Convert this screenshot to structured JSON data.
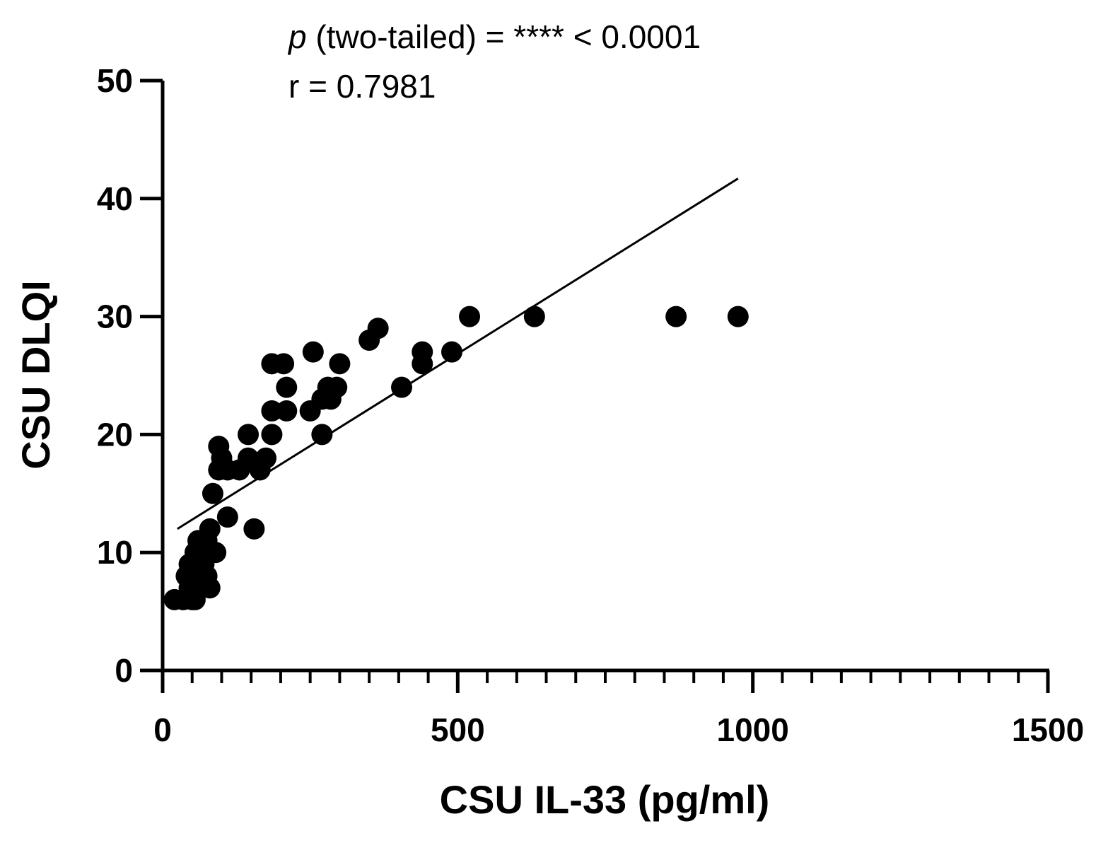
{
  "chart_data": {
    "type": "scatter",
    "title": "",
    "annotations": {
      "p_symbol": "p",
      "p_text": " (two-tailed) = **** < 0.0001",
      "r_text": "r = 0.7981"
    },
    "xlabel": "CSU IL-33 (pg/ml)",
    "ylabel": "CSU DLQI",
    "xlim": [
      0,
      1500
    ],
    "ylim": [
      0,
      50
    ],
    "x_major_ticks": [
      0,
      500,
      1000,
      1500
    ],
    "x_tick_labels": [
      "0",
      "500",
      "1000",
      "1500"
    ],
    "x_minor_step": 50,
    "y_major_ticks": [
      0,
      10,
      20,
      30,
      40,
      50
    ],
    "y_tick_labels": [
      "0",
      "10",
      "20",
      "30",
      "40",
      "50"
    ],
    "grid": false,
    "legend": null,
    "series": [
      {
        "name": "CSU",
        "marker": "circle",
        "color": "#000000",
        "points": [
          [
            20,
            6
          ],
          [
            35,
            6
          ],
          [
            50,
            6
          ],
          [
            55,
            6
          ],
          [
            45,
            7
          ],
          [
            80,
            7
          ],
          [
            40,
            8
          ],
          [
            60,
            8
          ],
          [
            75,
            8
          ],
          [
            45,
            9
          ],
          [
            65,
            9
          ],
          [
            70,
            9
          ],
          [
            55,
            10
          ],
          [
            90,
            10
          ],
          [
            60,
            11
          ],
          [
            75,
            11
          ],
          [
            80,
            12
          ],
          [
            155,
            12
          ],
          [
            110,
            13
          ],
          [
            85,
            15
          ],
          [
            95,
            17
          ],
          [
            110,
            17
          ],
          [
            130,
            17
          ],
          [
            165,
            17
          ],
          [
            100,
            18
          ],
          [
            145,
            18
          ],
          [
            175,
            18
          ],
          [
            95,
            19
          ],
          [
            145,
            20
          ],
          [
            185,
            20
          ],
          [
            270,
            20
          ],
          [
            185,
            22
          ],
          [
            210,
            22
          ],
          [
            250,
            22
          ],
          [
            270,
            23
          ],
          [
            285,
            23
          ],
          [
            280,
            24
          ],
          [
            295,
            24
          ],
          [
            210,
            24
          ],
          [
            405,
            24
          ],
          [
            185,
            26
          ],
          [
            205,
            26
          ],
          [
            300,
            26
          ],
          [
            440,
            26
          ],
          [
            255,
            27
          ],
          [
            440,
            27
          ],
          [
            490,
            27
          ],
          [
            350,
            28
          ],
          [
            365,
            29
          ],
          [
            520,
            30
          ],
          [
            630,
            30
          ],
          [
            870,
            30
          ],
          [
            975,
            30
          ]
        ]
      }
    ],
    "fit_line": {
      "x": [
        25,
        975
      ],
      "y": [
        12,
        41.7
      ]
    }
  }
}
